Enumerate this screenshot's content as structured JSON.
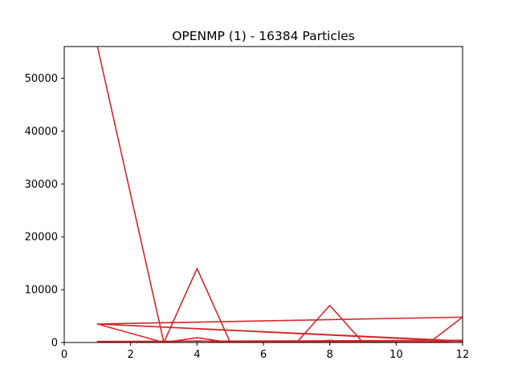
{
  "chart_data": {
    "type": "line",
    "title": "OPENMP (1) - 16384 Particles",
    "xlabel": "",
    "ylabel": "",
    "xlim": [
      0,
      12
    ],
    "ylim": [
      0,
      56000
    ],
    "x_ticks": [
      0,
      2,
      4,
      6,
      8,
      10,
      12
    ],
    "y_ticks": [
      0,
      10000,
      20000,
      30000,
      40000,
      50000
    ],
    "grid": false,
    "line_color": "#d62728",
    "series": [
      {
        "x": [
          1,
          3,
          4,
          5,
          7,
          8,
          9,
          11,
          12,
          1,
          3,
          4,
          5,
          7,
          8,
          9,
          11,
          12,
          1,
          3,
          4,
          5,
          7,
          8,
          9,
          11,
          12,
          1,
          12
        ],
        "y": [
          56000,
          0,
          14000,
          0,
          0,
          7000,
          0,
          0,
          4800,
          3500,
          0,
          900,
          0,
          0,
          400,
          0,
          0,
          400,
          200,
          150,
          300,
          100,
          100,
          200,
          100,
          100,
          300,
          3500,
          200
        ]
      }
    ]
  }
}
